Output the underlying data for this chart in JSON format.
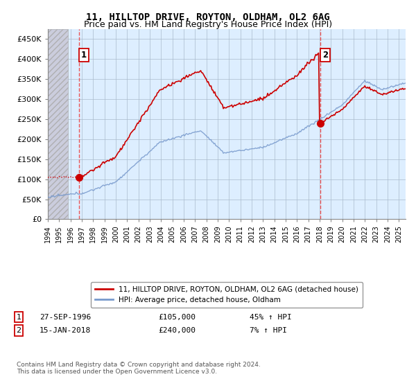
{
  "title": "11, HILLTOP DRIVE, ROYTON, OLDHAM, OL2 6AG",
  "subtitle": "Price paid vs. HM Land Registry's House Price Index (HPI)",
  "ylim": [
    0,
    475000
  ],
  "yticks": [
    0,
    50000,
    100000,
    150000,
    200000,
    250000,
    300000,
    350000,
    400000,
    450000
  ],
  "ytick_labels": [
    "£0",
    "£50K",
    "£100K",
    "£150K",
    "£200K",
    "£250K",
    "£300K",
    "£350K",
    "£400K",
    "£450K"
  ],
  "purchase1_year": 1996.75,
  "purchase1_price": 105000,
  "purchase1_label": "27-SEP-1996",
  "purchase1_hpi_text": "45% ↑ HPI",
  "purchase2_year": 2018.04,
  "purchase2_price": 240000,
  "purchase2_label": "15-JAN-2018",
  "purchase2_hpi_text": "7% ↑ HPI",
  "line1_label": "11, HILLTOP DRIVE, ROYTON, OLDHAM, OL2 6AG (detached house)",
  "line2_label": "HPI: Average price, detached house, Oldham",
  "footer": "Contains HM Land Registry data © Crown copyright and database right 2024.\nThis data is licensed under the Open Government Licence v3.0.",
  "line1_color": "#cc0000",
  "line2_color": "#7799cc",
  "dashed_line_color": "#ee4444",
  "chart_bg_color": "#ddeeff",
  "hatch_color": "#c8c8d8",
  "grid_color": "#aabbcc",
  "title_fontsize": 10,
  "subtitle_fontsize": 9
}
